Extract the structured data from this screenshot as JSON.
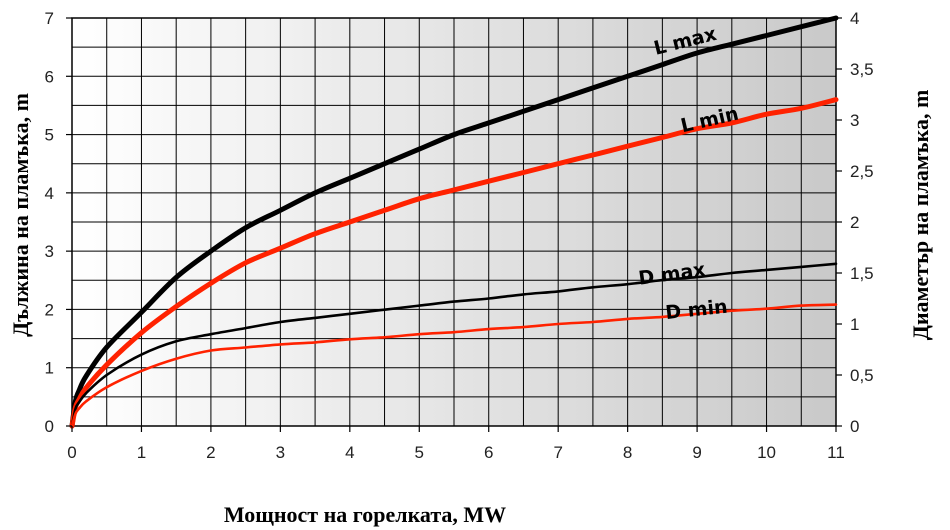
{
  "chart_data": {
    "type": "line",
    "title": "",
    "xlabel": "Мощност на горелката, MW",
    "ylabel_left": "Дължина на пламъка,  m",
    "ylabel_right": "Диаметър на пламъка,  m",
    "xlim": [
      0,
      11
    ],
    "ylim_left": [
      0,
      7
    ],
    "ylim_right": [
      0,
      4
    ],
    "x_ticks": [
      "0",
      "1",
      "2",
      "3",
      "4",
      "5",
      "6",
      "7",
      "8",
      "9",
      "10",
      "11"
    ],
    "y_left_ticks": [
      "0",
      "1",
      "2",
      "3",
      "4",
      "5",
      "6",
      "7"
    ],
    "y_right_ticks": [
      "0",
      "0,5",
      "1",
      "1,5",
      "2",
      "2,5",
      "3",
      "3,5",
      "4"
    ],
    "grid": true,
    "series": [
      {
        "name": "L max",
        "axis": "left",
        "color": "#000000",
        "x": [
          0,
          0.05,
          0.1,
          0.2,
          0.5,
          1,
          1.5,
          2,
          2.5,
          3,
          3.5,
          4,
          4.5,
          5,
          5.5,
          6,
          6.5,
          7,
          7.5,
          8,
          8.5,
          9,
          9.5,
          10,
          10.5,
          11
        ],
        "y": [
          0,
          0.43,
          0.6,
          0.85,
          1.35,
          1.95,
          2.55,
          3.0,
          3.4,
          3.7,
          4.0,
          4.25,
          4.5,
          4.75,
          5.0,
          5.2,
          5.4,
          5.6,
          5.8,
          6.0,
          6.2,
          6.4,
          6.55,
          6.7,
          6.85,
          7.0
        ]
      },
      {
        "name": "L min",
        "axis": "left",
        "color": "#ff2200",
        "x": [
          0,
          0.05,
          0.1,
          0.2,
          0.5,
          1,
          1.5,
          2,
          2.5,
          3,
          3.5,
          4,
          4.5,
          5,
          5.5,
          6,
          6.5,
          7,
          7.5,
          8,
          8.5,
          9,
          9.5,
          10,
          10.5,
          11
        ],
        "y": [
          0,
          0.32,
          0.45,
          0.65,
          1.05,
          1.6,
          2.05,
          2.45,
          2.8,
          3.05,
          3.3,
          3.5,
          3.7,
          3.9,
          4.05,
          4.2,
          4.35,
          4.5,
          4.65,
          4.8,
          4.95,
          5.1,
          5.2,
          5.35,
          5.45,
          5.6
        ]
      },
      {
        "name": "D max",
        "axis": "right",
        "color": "#000000",
        "x": [
          0,
          0.05,
          0.1,
          0.2,
          0.5,
          1,
          1.5,
          2,
          2.5,
          3,
          3.5,
          4,
          4.5,
          5,
          5.5,
          6,
          6.5,
          7,
          7.5,
          8,
          8.5,
          9,
          9.5,
          10,
          10.5,
          11
        ],
        "y": [
          0,
          0.17,
          0.23,
          0.32,
          0.5,
          0.7,
          0.83,
          0.9,
          0.96,
          1.02,
          1.06,
          1.1,
          1.14,
          1.18,
          1.22,
          1.25,
          1.29,
          1.32,
          1.36,
          1.39,
          1.43,
          1.46,
          1.5,
          1.53,
          1.56,
          1.59
        ]
      },
      {
        "name": "D min",
        "axis": "right",
        "color": "#ff2200",
        "x": [
          0,
          0.05,
          0.1,
          0.2,
          0.5,
          1,
          1.5,
          2,
          2.5,
          3,
          3.5,
          4,
          4.5,
          5,
          5.5,
          6,
          6.5,
          7,
          7.5,
          8,
          8.5,
          9,
          9.5,
          10,
          10.5,
          11
        ],
        "y": [
          0,
          0.12,
          0.17,
          0.24,
          0.38,
          0.54,
          0.66,
          0.74,
          0.77,
          0.8,
          0.82,
          0.85,
          0.87,
          0.9,
          0.92,
          0.95,
          0.97,
          1.0,
          1.02,
          1.05,
          1.07,
          1.1,
          1.13,
          1.15,
          1.18,
          1.19
        ]
      }
    ],
    "curve_labels": [
      {
        "text": "L max",
        "x": 8.85,
        "y": 6.5,
        "axis": "left",
        "rotate": -14
      },
      {
        "text": "L min",
        "x": 9.2,
        "y": 5.15,
        "axis": "left",
        "rotate": -13
      },
      {
        "text": "D max",
        "x": 8.65,
        "y": 1.43,
        "axis": "right",
        "rotate": -8
      },
      {
        "text": "D min",
        "x": 9.0,
        "y": 1.08,
        "axis": "right",
        "rotate": -6
      }
    ],
    "background": {
      "gradient_from": "#ffffff",
      "gradient_to": "#c9c9c9"
    }
  }
}
